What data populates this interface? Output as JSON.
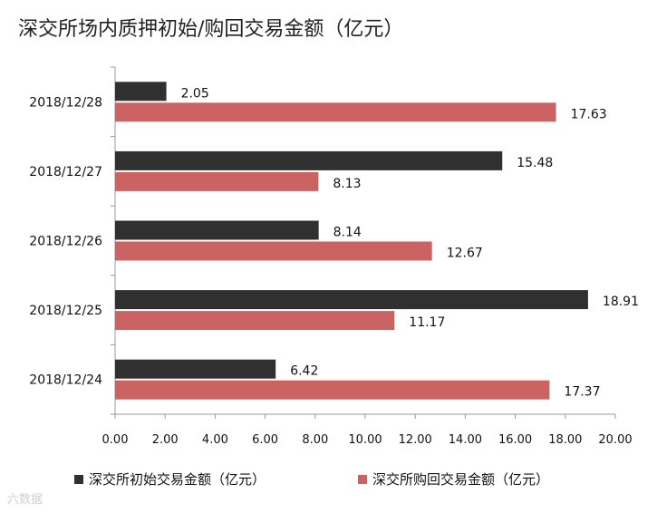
{
  "title": "深交所场内质押初始/购回交易金额（亿元）",
  "watermark": "六数据",
  "chart_data": {
    "type": "bar",
    "orientation": "horizontal",
    "title": "深交所场内质押初始/购回交易金额（亿元）",
    "categories": [
      "2018/12/28",
      "2018/12/27",
      "2018/12/26",
      "2018/12/25",
      "2018/12/24"
    ],
    "series": [
      {
        "name": "深交所初始交易金额（亿元）",
        "color": "#303030",
        "values": [
          2.05,
          15.48,
          8.14,
          18.91,
          6.42
        ]
      },
      {
        "name": "深交所购回交易金额（亿元）",
        "color": "#cc6363",
        "values": [
          17.63,
          8.13,
          12.67,
          11.17,
          17.37
        ]
      }
    ],
    "xlim": [
      0,
      20
    ],
    "xticks": [
      "0.00",
      "2.00",
      "4.00",
      "6.00",
      "8.00",
      "10.00",
      "12.00",
      "14.00",
      "16.00",
      "18.00",
      "20.00"
    ],
    "legend_position": "bottom",
    "grid": false
  }
}
